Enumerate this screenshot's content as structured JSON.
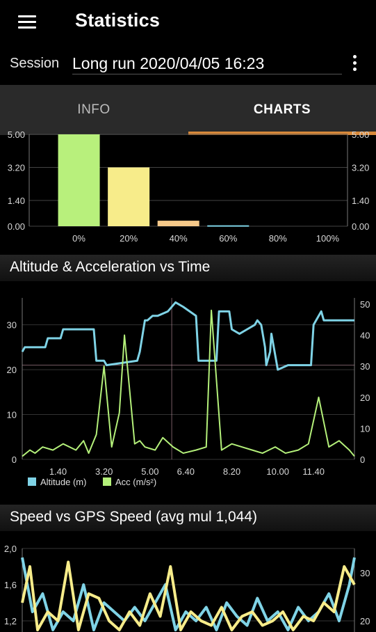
{
  "appbar": {
    "title": "Statistics",
    "menu_icon": "hamburger-menu-icon",
    "overflow_icon": "more-vertical-icon"
  },
  "session": {
    "label": "Session",
    "value": "Long run 2020/04/05 16:23"
  },
  "tabs": [
    {
      "label": "INFO",
      "active": false
    },
    {
      "label": "CHARTS",
      "active": true
    }
  ],
  "colors": {
    "accent": "#d8893a",
    "altitude": "#7fd3e6",
    "acc": "#b4f07a",
    "speed": "#7fd3e6",
    "gps_speed": "#f7ec8a"
  },
  "chart_data": [
    {
      "type": "bar",
      "categories": [
        "0%",
        "20%",
        "40%",
        "60%",
        "80%",
        "100%"
      ],
      "values": [
        5.0,
        3.2,
        0.3,
        0.05,
        0.0,
        0.0
      ],
      "bar_colors": [
        "#b8f07c",
        "#f7ec8a",
        "#f6c98a",
        "#7fd3e6",
        "#7fd3e6",
        "#7fd3e6"
      ],
      "yticks": [
        "0.00",
        "1.40",
        "3.20",
        "5.00"
      ],
      "y2ticks": [
        "0.00",
        "1.40",
        "3.20",
        "5.00"
      ],
      "ylim": [
        0,
        5.0
      ],
      "grid": true
    },
    {
      "type": "line",
      "title": "Altitude & Acceleration vs Time",
      "xticks": [
        "1.40",
        "3.20",
        "5.00",
        "6.40",
        "8.20",
        "10.00",
        "11.40"
      ],
      "x_range": [
        0,
        13.0
      ],
      "yticks_left": [
        "0",
        "10",
        "20",
        "30"
      ],
      "yticks_right": [
        "0",
        "10",
        "20",
        "30",
        "40",
        "50"
      ],
      "ylim_left": [
        0,
        36
      ],
      "ylim_right": [
        0,
        52
      ],
      "series": [
        {
          "name": "Altitude (m)",
          "axis": "left",
          "x": [
            0,
            0.1,
            0.9,
            1.0,
            1.5,
            1.6,
            2.8,
            2.9,
            3.2,
            3.3,
            4.5,
            4.6,
            4.8,
            4.9,
            5.1,
            5.3,
            5.7,
            6.0,
            6.3,
            6.8,
            6.9,
            7.6,
            7.7,
            8.1,
            8.2,
            8.5,
            8.8,
            9.1,
            9.2,
            9.35,
            9.5,
            9.55,
            9.7,
            9.75,
            10.0,
            10.4,
            11.3,
            11.4,
            11.7,
            11.8,
            13.0
          ],
          "y": [
            24,
            25,
            25,
            27,
            27,
            29,
            29,
            22,
            22,
            21,
            22,
            24,
            31,
            31,
            32,
            32,
            33,
            35,
            34,
            32,
            22,
            22,
            33,
            33,
            29,
            28,
            29,
            30,
            31,
            30,
            25,
            21,
            24,
            28,
            20,
            21,
            21,
            30,
            33,
            31,
            31
          ]
        },
        {
          "name": "Acc (m/s²)",
          "axis": "right",
          "x": [
            0,
            0.3,
            0.5,
            0.8,
            1.2,
            1.6,
            2.1,
            2.4,
            2.6,
            2.9,
            3.2,
            3.5,
            3.8,
            4.0,
            4.4,
            4.6,
            4.8,
            5.2,
            5.5,
            5.9,
            6.3,
            6.8,
            7.2,
            7.4,
            7.8,
            8.2,
            8.6,
            9.0,
            9.4,
            9.9,
            10.3,
            10.8,
            11.2,
            11.6,
            12.0,
            12.4,
            12.8,
            13.0
          ],
          "y": [
            1,
            3,
            2,
            4,
            3,
            5,
            3,
            6,
            2,
            8,
            30,
            4,
            15,
            40,
            5,
            6,
            4,
            3,
            7,
            4,
            2,
            3,
            4,
            48,
            3,
            5,
            4,
            3,
            2,
            4,
            2,
            3,
            5,
            20,
            4,
            6,
            3,
            1
          ]
        }
      ],
      "legend_position": "bottom-left",
      "grid": true
    },
    {
      "type": "line",
      "title": "Speed vs GPS Speed (avg mul 1,044)",
      "yticks_left": [
        "1,2",
        "1,6",
        "2,0"
      ],
      "yticks_right": [
        "20",
        "30"
      ],
      "ylim_left": [
        1.0,
        2.0
      ],
      "x_range": [
        0,
        13.0
      ],
      "series": [
        {
          "name": "",
          "color_key": "speed",
          "x": [
            0,
            0.4,
            0.8,
            1.2,
            1.6,
            2.0,
            2.4,
            2.8,
            3.2,
            3.6,
            4.0,
            4.4,
            4.8,
            5.2,
            5.6,
            6.0,
            6.4,
            6.8,
            7.2,
            7.6,
            8.0,
            8.4,
            8.8,
            9.2,
            9.6,
            10.0,
            10.4,
            10.8,
            11.2,
            11.6,
            12.0,
            12.4,
            12.8,
            13.0
          ],
          "y": [
            1.9,
            1.3,
            1.5,
            1.1,
            1.3,
            1.2,
            1.6,
            1.1,
            1.4,
            1.3,
            1.2,
            1.35,
            1.2,
            1.4,
            1.6,
            1.1,
            1.3,
            1.2,
            1.35,
            1.1,
            1.4,
            1.25,
            1.15,
            1.45,
            1.2,
            1.3,
            1.1,
            1.35,
            1.2,
            1.3,
            1.5,
            1.2,
            1.6,
            1.9
          ]
        },
        {
          "name": "",
          "color_key": "gps_speed",
          "x": [
            0,
            0.3,
            0.6,
            1.0,
            1.4,
            1.8,
            2.2,
            2.6,
            3.0,
            3.4,
            3.8,
            4.2,
            4.6,
            5.0,
            5.4,
            5.8,
            6.2,
            6.6,
            7.0,
            7.4,
            7.8,
            8.2,
            8.6,
            9.0,
            9.4,
            9.8,
            10.2,
            10.6,
            11.0,
            11.4,
            11.8,
            12.2,
            12.6,
            13.0
          ],
          "y": [
            1.4,
            1.8,
            1.1,
            1.3,
            1.2,
            1.85,
            1.1,
            1.5,
            1.45,
            1.2,
            1.1,
            1.3,
            1.15,
            1.5,
            1.25,
            1.8,
            1.1,
            1.3,
            1.2,
            1.15,
            1.35,
            1.1,
            1.25,
            1.3,
            1.15,
            1.2,
            1.3,
            1.1,
            1.25,
            1.2,
            1.4,
            1.3,
            1.8,
            1.6
          ]
        }
      ],
      "grid": true
    }
  ]
}
